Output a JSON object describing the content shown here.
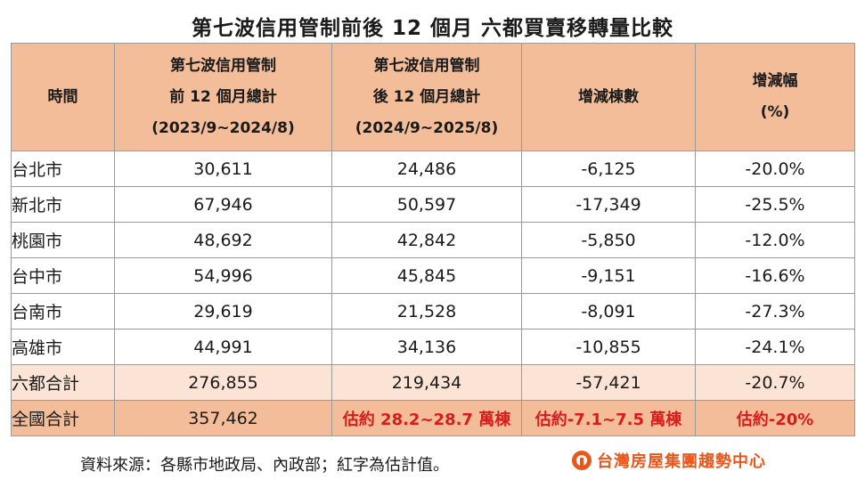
{
  "title": "第七波信用管制前後 12 個月  六都買賣移轉量比較",
  "columns": {
    "c1": [
      "時間"
    ],
    "c2": [
      "第七波信用管制",
      "前 12 個月總計",
      "(2023/9~2024/8)"
    ],
    "c3": [
      "第七波信用管制",
      "後 12 個月總計",
      "(2024/9~2025/8)"
    ],
    "c4": [
      "增減棟數"
    ],
    "c5": [
      "增減幅",
      "(%)"
    ]
  },
  "rows": [
    {
      "name": "台北市",
      "before": "30,611",
      "after": "24,486",
      "diff": "-6,125",
      "pct": "-20.0%"
    },
    {
      "name": "新北市",
      "before": "67,946",
      "after": "50,597",
      "diff": "-17,349",
      "pct": "-25.5%"
    },
    {
      "name": "桃園市",
      "before": "48,692",
      "after": "42,842",
      "diff": "-5,850",
      "pct": "-12.0%"
    },
    {
      "name": "台中市",
      "before": "54,996",
      "after": "45,845",
      "diff": "-9,151",
      "pct": "-16.6%"
    },
    {
      "name": "台南市",
      "before": "29,619",
      "after": "21,528",
      "diff": "-8,091",
      "pct": "-27.3%"
    },
    {
      "name": "高雄市",
      "before": "44,991",
      "after": "34,136",
      "diff": "-10,855",
      "pct": "-24.1%"
    },
    {
      "name": "六都合計",
      "before": "276,855",
      "after": "219,434",
      "diff": "-57,421",
      "pct": "-20.7%"
    },
    {
      "name": "全國合計",
      "before": "357,462",
      "after": "估約 28.2~28.7 萬棟",
      "diff": "估約-7.1~7.5 萬棟",
      "pct": "估約-20%"
    }
  ],
  "footer": {
    "source": "資料來源：各縣市地政局、內政部；紅字為估計值。",
    "logo_text": "台灣房屋集團趨勢中心"
  },
  "colors": {
    "header_bg": "#f3bd9a",
    "six_total_bg": "#fbe4d6",
    "estimate_text": "#d81b1b",
    "logo": "#e8571c"
  },
  "icons": {
    "logo": "taiwan-realty-logo-icon"
  }
}
